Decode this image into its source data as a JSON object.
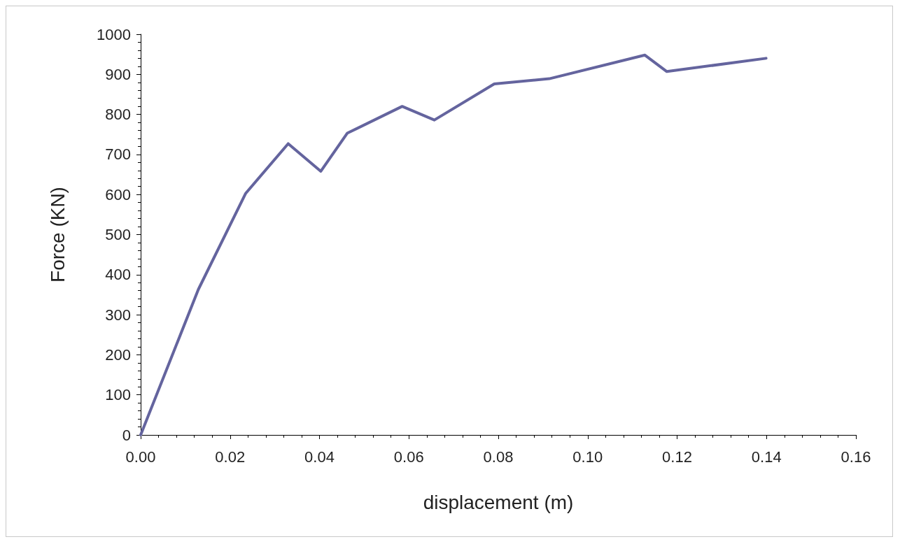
{
  "chart_data": {
    "type": "line",
    "xlabel": "displacement (m)",
    "ylabel": "Force (KN)",
    "x": [
      0,
      0.0129,
      0.0235,
      0.033,
      0.0403,
      0.0462,
      0.0585,
      0.0657,
      0.0791,
      0.0914,
      0.1128,
      0.1177,
      0.1399
    ],
    "series": [
      {
        "color": "#64649e",
        "values": [
          0,
          363,
          603,
          727,
          658,
          753,
          820,
          786,
          876,
          889,
          948,
          907,
          940
        ]
      }
    ],
    "xlim": [
      0,
      0.16
    ],
    "xticks": [
      {
        "value": 0,
        "label": "0.00"
      },
      {
        "value": 0.02,
        "label": "0.02"
      },
      {
        "value": 0.04,
        "label": "0.04"
      },
      {
        "value": 0.06,
        "label": "0.06"
      },
      {
        "value": 0.08,
        "label": "0.08"
      },
      {
        "value": 0.1,
        "label": "0.10"
      },
      {
        "value": 0.12,
        "label": "0.12"
      },
      {
        "value": 0.14,
        "label": "0.14"
      },
      {
        "value": 0.16,
        "label": "0.16"
      }
    ],
    "ylim": [
      0,
      1000
    ],
    "yticks": [
      0,
      100,
      200,
      300,
      400,
      500,
      600,
      700,
      800,
      900,
      1000
    ],
    "grid": false,
    "marker": "none",
    "line_style": "solid"
  }
}
